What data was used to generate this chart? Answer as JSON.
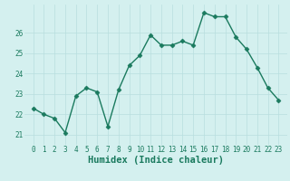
{
  "xlabel": "Humidex (Indice chaleur)",
  "x": [
    0,
    1,
    2,
    3,
    4,
    5,
    6,
    7,
    8,
    9,
    10,
    11,
    12,
    13,
    14,
    15,
    16,
    17,
    18,
    19,
    20,
    21,
    22,
    23
  ],
  "y": [
    22.3,
    22.0,
    21.8,
    21.1,
    22.9,
    23.3,
    23.1,
    21.4,
    23.2,
    24.4,
    24.9,
    25.9,
    25.4,
    25.4,
    25.6,
    25.4,
    27.0,
    26.8,
    26.8,
    25.8,
    25.2,
    24.3,
    23.3,
    22.7
  ],
  "line_color": "#1a7a5e",
  "marker": "D",
  "markersize": 2.5,
  "linewidth": 1.0,
  "bg_color": "#d4f0ef",
  "grid_color": "#b8dede",
  "ylim": [
    20.5,
    27.4
  ],
  "yticks": [
    21,
    22,
    23,
    24,
    25,
    26
  ],
  "xticks": [
    0,
    1,
    2,
    3,
    4,
    5,
    6,
    7,
    8,
    9,
    10,
    11,
    12,
    13,
    14,
    15,
    16,
    17,
    18,
    19,
    20,
    21,
    22,
    23
  ],
  "tick_fontsize": 5.5,
  "xlabel_fontsize": 7.5,
  "tick_color": "#1a7a5e",
  "xlabel_color": "#1a7a5e"
}
